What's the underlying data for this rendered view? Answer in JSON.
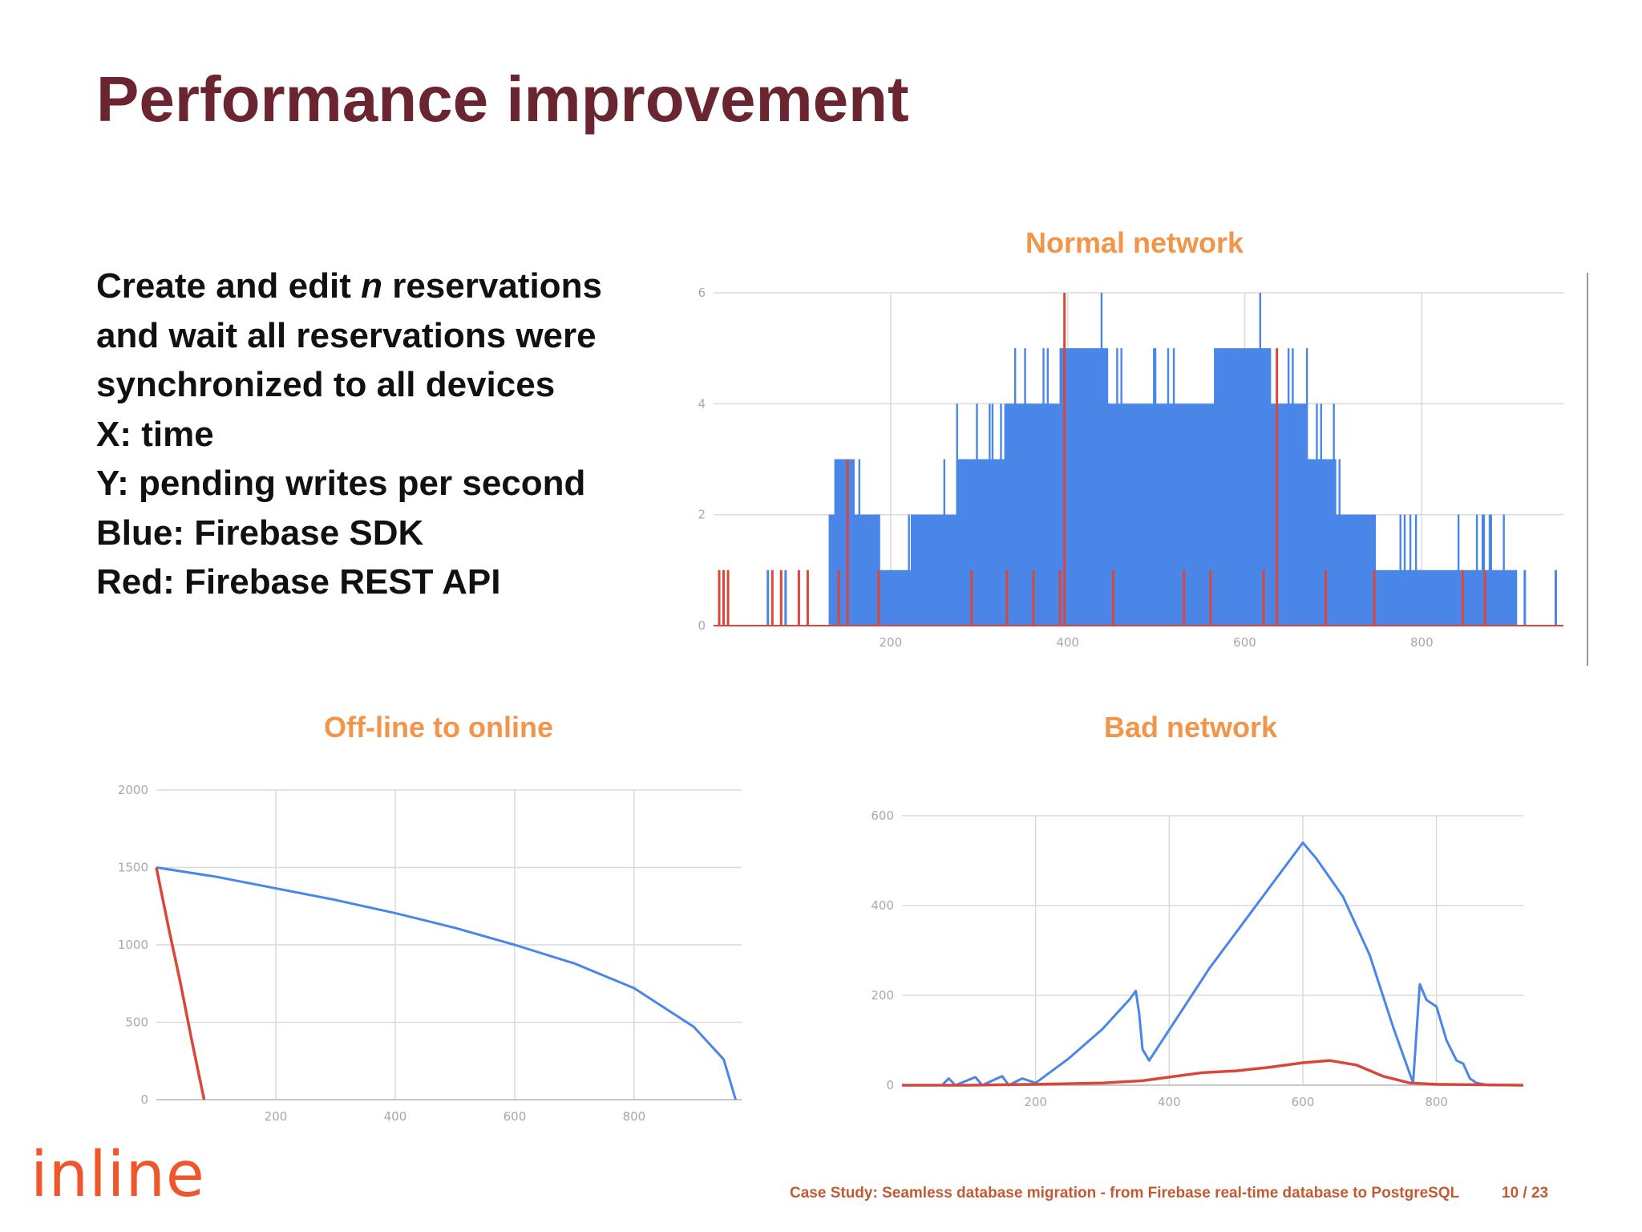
{
  "slide": {
    "title": "Performance improvement",
    "bullets": [
      "Create and edit <i>n</i> reservations",
      "and wait all reservations were",
      "synchronized to all devices",
      "X: time",
      "Y: pending writes per second",
      "Blue: Firebase SDK",
      "Red: Firebase REST API"
    ],
    "footer": "Case Study: Seamless database migration - from Firebase real-time database to PostgreSQL",
    "page": "10  / 23",
    "logo": "inline"
  },
  "colors": {
    "title": "#6b2530",
    "chart_title": "#f0954a",
    "firebase_sdk": "#4a86e8",
    "firebase_rest": "#d9473a",
    "logo": "#f0562c",
    "footer": "#c25a33"
  },
  "chart_data": [
    {
      "id": "normal",
      "type": "bar",
      "title": "Normal network",
      "xlim": [
        0,
        960
      ],
      "ylim": [
        0,
        6
      ],
      "x_ticks": [
        "200",
        "400",
        "600",
        "800"
      ],
      "y_ticks": [
        "0",
        "2",
        "4",
        "6"
      ],
      "grid": true,
      "series": [
        {
          "color": "#4a86e8",
          "x": [
            95,
            125,
            145,
            200,
            245,
            300,
            360,
            420,
            470,
            530,
            600,
            655,
            685,
            720,
            775,
            830,
            870,
            950
          ],
          "values": [
            1,
            2,
            3,
            1,
            2,
            3,
            4,
            5,
            4,
            4,
            5,
            4,
            3,
            2,
            1,
            1,
            1,
            1
          ],
          "bars_from": [
            [
              0,
              0
            ],
            [
              1,
              0
            ],
            [
              2,
              0
            ],
            [
              3,
              0
            ]
          ],
          "note": ""
        },
        {
          "color": "#d9473a",
          "x": [
            5,
            10,
            15,
            65,
            75,
            95,
            105,
            140,
            150,
            185,
            290,
            330,
            360,
            390,
            395,
            450,
            530,
            560,
            620,
            635,
            690,
            745,
            845,
            870
          ],
          "values": [
            1,
            1,
            1,
            1,
            1,
            1,
            1,
            1,
            3,
            1,
            1,
            1,
            1,
            1,
            6,
            1,
            1,
            1,
            1,
            5,
            1,
            1,
            1,
            1
          ]
        }
      ]
    },
    {
      "id": "offline",
      "type": "line",
      "title": "Off-line to online",
      "xlim": [
        0,
        980
      ],
      "ylim": [
        0,
        2000
      ],
      "x_ticks": [
        "200",
        "400",
        "600",
        "800"
      ],
      "y_ticks": [
        "0",
        "500",
        "1000",
        "1500",
        "2000"
      ],
      "grid": true,
      "series": [
        {
          "color": "#4a86e8",
          "x": [
            0,
            100,
            200,
            300,
            400,
            500,
            600,
            700,
            800,
            900,
            950,
            970
          ],
          "values": [
            1500,
            1440,
            1365,
            1290,
            1205,
            1110,
            1000,
            880,
            720,
            470,
            260,
            0
          ]
        },
        {
          "color": "#d9473a",
          "x": [
            0,
            20,
            40,
            60,
            80
          ],
          "values": [
            1500,
            1120,
            760,
            370,
            0
          ]
        }
      ]
    },
    {
      "id": "bad",
      "type": "line",
      "title": "Bad network",
      "xlim": [
        0,
        930
      ],
      "ylim": [
        0,
        600
      ],
      "x_ticks": [
        "200",
        "400",
        "600",
        "800"
      ],
      "y_ticks": [
        "0",
        "200",
        "400",
        "600"
      ],
      "grid": true,
      "series": [
        {
          "color": "#4a86e8",
          "x": [
            0,
            60,
            70,
            80,
            110,
            120,
            150,
            160,
            180,
            200,
            250,
            300,
            340,
            350,
            355,
            360,
            370,
            460,
            560,
            600,
            620,
            660,
            700,
            735,
            765,
            775,
            785,
            800,
            815,
            830,
            840,
            850,
            860,
            880,
            930
          ],
          "values": [
            0,
            0,
            15,
            0,
            18,
            0,
            20,
            0,
            15,
            5,
            60,
            125,
            190,
            210,
            160,
            80,
            55,
            260,
            460,
            540,
            505,
            420,
            290,
            130,
            5,
            225,
            190,
            175,
            100,
            55,
            48,
            15,
            5,
            0,
            0
          ],
          "note": ""
        },
        {
          "color": "#d9473a",
          "x": [
            0,
            100,
            200,
            300,
            360,
            400,
            450,
            500,
            550,
            600,
            640,
            680,
            720,
            760,
            800,
            930
          ],
          "values": [
            0,
            0,
            2,
            5,
            10,
            18,
            28,
            32,
            40,
            50,
            55,
            45,
            20,
            5,
            2,
            0
          ]
        }
      ]
    }
  ]
}
